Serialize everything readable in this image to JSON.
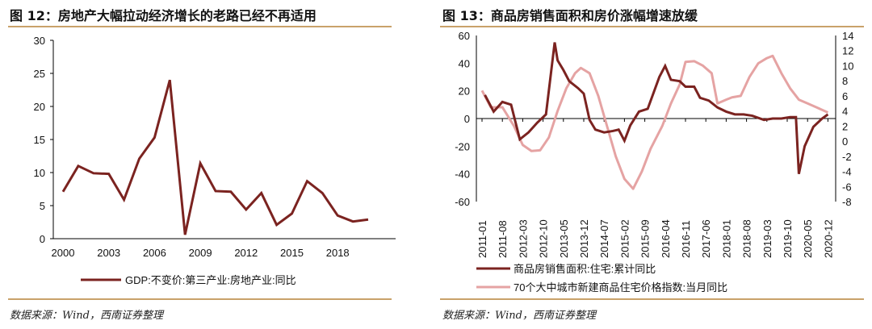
{
  "left": {
    "title": "图 12：房地产大幅拉动经济增长的老路已经不再适用",
    "source": "数据来源：Wind，西南证券整理"
  },
  "right": {
    "title": "图 13：商品房销售面积和房价涨幅增速放缓",
    "source": "数据来源：Wind，西南证券整理"
  },
  "colors": {
    "dark": "#7b2320",
    "pink": "#e5a3a3",
    "rule": "#c9a26a"
  },
  "chart_data": [
    {
      "type": "line",
      "title": "房地产大幅拉动经济增长的老路已经不再适用",
      "ylim": [
        0,
        30
      ],
      "yticks": [
        0,
        5,
        10,
        15,
        20,
        25,
        30
      ],
      "xticks": [
        "2000",
        "2003",
        "2006",
        "2009",
        "2012",
        "2015",
        "2018"
      ],
      "series": [
        {
          "name": "GDP:不变价:第三产业:房地产业:同比",
          "x": [
            2000,
            2001,
            2002,
            2003,
            2004,
            2005,
            2006,
            2007,
            2008,
            2009,
            2010,
            2011,
            2012,
            2013,
            2014,
            2015,
            2016,
            2017,
            2018,
            2019,
            2020
          ],
          "values": [
            7.1,
            11.0,
            9.9,
            9.8,
            5.9,
            12.1,
            15.3,
            24.0,
            0.6,
            11.4,
            7.2,
            7.1,
            4.4,
            6.9,
            2.1,
            3.8,
            8.7,
            6.9,
            3.5,
            2.6,
            2.9
          ]
        }
      ],
      "legend": "bottom"
    },
    {
      "type": "line",
      "title": "商品房销售面积和房价涨幅增速放缓",
      "ylim": [
        -60,
        60
      ],
      "y2lim": [
        -8,
        14
      ],
      "yticks": [
        -60,
        -40,
        -20,
        0,
        20,
        40,
        60
      ],
      "y2ticks": [
        -8,
        -6,
        -4,
        -2,
        0,
        2,
        4,
        6,
        8,
        10,
        12,
        14
      ],
      "xticks": [
        "2011-01",
        "2011-08",
        "2012-03",
        "2012-10",
        "2013-05",
        "2013-12",
        "2014-07",
        "2015-02",
        "2015-09",
        "2016-04",
        "2016-11",
        "2017-06",
        "2018-01",
        "2018-08",
        "2019-03",
        "2019-10",
        "2020-05",
        "2020-12"
      ],
      "series": [
        {
          "name": "商品房销售面积:住宅:累计同比",
          "axis": "left",
          "x": [
            "2011-02",
            "2011-05",
            "2011-08",
            "2011-11",
            "2012-02",
            "2012-05",
            "2012-08",
            "2012-11",
            "2013-02",
            "2013-03",
            "2013-05",
            "2013-07",
            "2013-10",
            "2013-12",
            "2014-02",
            "2014-04",
            "2014-07",
            "2014-10",
            "2014-12",
            "2015-02",
            "2015-04",
            "2015-07",
            "2015-10",
            "2016-02",
            "2016-04",
            "2016-06",
            "2016-09",
            "2016-11",
            "2017-02",
            "2017-04",
            "2017-07",
            "2017-10",
            "2018-01",
            "2018-04",
            "2018-07",
            "2018-10",
            "2019-02",
            "2019-05",
            "2019-08",
            "2019-11",
            "2020-01",
            "2020-02",
            "2020-04",
            "2020-07",
            "2020-10",
            "2020-12"
          ],
          "values": [
            17,
            5,
            12,
            10,
            -15,
            -10,
            -3,
            3,
            55,
            42,
            35,
            27,
            22,
            18,
            -1,
            -8,
            -10,
            -9,
            -8,
            -16,
            -5,
            5,
            7,
            30,
            38,
            28,
            27,
            23,
            23,
            15,
            13,
            8,
            5,
            3,
            3,
            2,
            -1,
            0,
            0,
            1,
            1,
            -40,
            -20,
            -6,
            0,
            3
          ]
        },
        {
          "name": "70个大中城市新建商品住宅价格指数:当月同比",
          "axis": "right",
          "x": [
            "2011-01",
            "2011-04",
            "2011-08",
            "2011-12",
            "2012-03",
            "2012-06",
            "2012-09",
            "2012-12",
            "2013-03",
            "2013-06",
            "2013-09",
            "2013-11",
            "2014-02",
            "2014-05",
            "2014-08",
            "2014-11",
            "2015-02",
            "2015-05",
            "2015-08",
            "2015-11",
            "2016-03",
            "2016-06",
            "2016-09",
            "2016-11",
            "2017-02",
            "2017-05",
            "2017-08",
            "2017-10",
            "2018-01",
            "2018-03",
            "2018-06",
            "2018-09",
            "2018-12",
            "2019-03",
            "2019-05",
            "2019-08",
            "2019-11",
            "2020-02",
            "2020-05",
            "2020-08",
            "2020-12"
          ],
          "values": [
            6.7,
            4.5,
            4.5,
            2,
            -0.5,
            -1.3,
            -1.2,
            0.5,
            4,
            7,
            9,
            9.7,
            9,
            6,
            2,
            -2,
            -5,
            -6.3,
            -4,
            -1,
            2,
            5,
            7.5,
            10.5,
            10.6,
            10,
            9,
            5,
            5.5,
            5.8,
            6,
            8.5,
            10.3,
            11,
            11.3,
            9,
            7,
            5.5,
            5,
            4.5,
            3.8
          ]
        }
      ],
      "legend": "bottom"
    }
  ]
}
